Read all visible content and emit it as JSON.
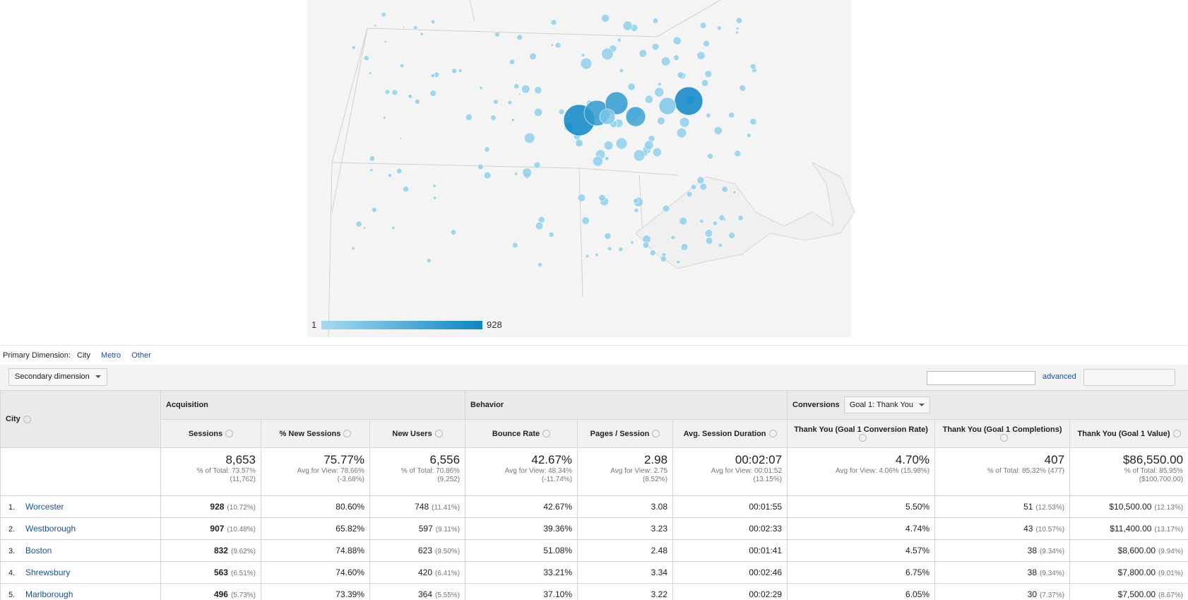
{
  "map": {
    "legend_min": "1",
    "legend_max": "928"
  },
  "primary_dimension": {
    "label": "Primary Dimension:",
    "options": [
      "City",
      "Metro",
      "Other"
    ]
  },
  "secondary_dimension": "Secondary dimension",
  "advanced": "advanced",
  "table": {
    "groups": [
      "Acquisition",
      "Behavior",
      "Conversions"
    ],
    "goal_select": "Goal 1: Thank You",
    "columns": [
      "City",
      "Sessions",
      "% New Sessions",
      "New Users",
      "Bounce Rate",
      "Pages / Session",
      "Avg. Session Duration",
      "Thank You (Goal 1 Conversion Rate)",
      "Thank You (Goal 1 Completions)",
      "Thank You (Goal 1 Value)"
    ],
    "totals": [
      [
        "8,653",
        "% of Total: 73.57%",
        "(11,762)"
      ],
      [
        "75.77%",
        "Avg for View: 78.66%",
        "(-3.68%)"
      ],
      [
        "6,556",
        "% of Total: 70.86%",
        "(9,252)"
      ],
      [
        "42.67%",
        "Avg for View: 48.34%",
        "(-11.74%)"
      ],
      [
        "2.98",
        "Avg for View: 2.75",
        "(8.52%)"
      ],
      [
        "00:02:07",
        "Avg for View: 00:01:52",
        "(13.15%)"
      ],
      [
        "4.70%",
        "Avg for View: 4.06% (15.98%)"
      ],
      [
        "407",
        "% of Total: 85.32% (477)"
      ],
      [
        "$86,550.00",
        "% of Total: 85.95%",
        "($100,700.00)"
      ]
    ],
    "rows": [
      {
        "rank": "1.",
        "city": "Worcester",
        "cells": [
          [
            "928",
            "(10.72%)"
          ],
          [
            "80.60%"
          ],
          [
            "748",
            "(11.41%)"
          ],
          [
            "42.67%"
          ],
          [
            "3.08"
          ],
          [
            "00:01:55"
          ],
          [
            "5.50%"
          ],
          [
            "51",
            "(12.53%)"
          ],
          [
            "$10,500.00",
            "(12.13%)"
          ]
        ]
      },
      {
        "rank": "2.",
        "city": "Westborough",
        "cells": [
          [
            "907",
            "(10.48%)"
          ],
          [
            "65.82%"
          ],
          [
            "597",
            "(9.11%)"
          ],
          [
            "39.36%"
          ],
          [
            "3.23"
          ],
          [
            "00:02:33"
          ],
          [
            "4.74%"
          ],
          [
            "43",
            "(10.57%)"
          ],
          [
            "$11,400.00",
            "(13.17%)"
          ]
        ]
      },
      {
        "rank": "3.",
        "city": "Boston",
        "cells": [
          [
            "832",
            "(9.62%)"
          ],
          [
            "74.88%"
          ],
          [
            "623",
            "(9.50%)"
          ],
          [
            "51.08%"
          ],
          [
            "2.48"
          ],
          [
            "00:01:41"
          ],
          [
            "4.57%"
          ],
          [
            "38",
            "(9.34%)"
          ],
          [
            "$8,600.00",
            "(9.94%)"
          ]
        ]
      },
      {
        "rank": "4.",
        "city": "Shrewsbury",
        "cells": [
          [
            "563",
            "(6.51%)"
          ],
          [
            "74.60%"
          ],
          [
            "420",
            "(6.41%)"
          ],
          [
            "33.21%"
          ],
          [
            "3.34"
          ],
          [
            "00:02:46"
          ],
          [
            "6.75%"
          ],
          [
            "38",
            "(9.34%)"
          ],
          [
            "$7,800.00",
            "(9.01%)"
          ]
        ]
      },
      {
        "rank": "5.",
        "city": "Marlborough",
        "cells": [
          [
            "496",
            "(5.73%)"
          ],
          [
            "73.39%"
          ],
          [
            "364",
            "(5.55%)"
          ],
          [
            "37.10%"
          ],
          [
            "3.22"
          ],
          [
            "00:02:29"
          ],
          [
            "6.05%"
          ],
          [
            "30",
            "(7.37%)"
          ],
          [
            "$7,500.00",
            "(8.67%)"
          ]
        ]
      }
    ]
  }
}
